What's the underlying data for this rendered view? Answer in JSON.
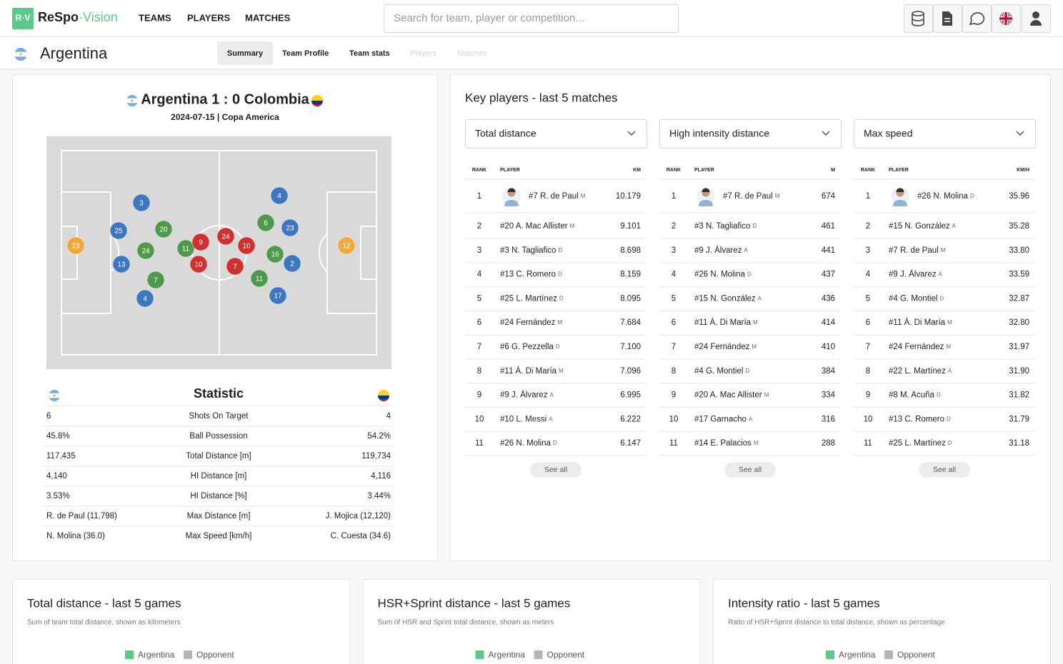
{
  "nav": {
    "logo_icon": "R·V",
    "brand": "ReSpo",
    "brand_suffix": "·Vision",
    "items": [
      "TEAMS",
      "PLAYERS",
      "MATCHES"
    ],
    "search_placeholder": "Search for team, player or competition..."
  },
  "header": {
    "team": "Argentina",
    "tabs": [
      "Summary",
      "Team Profile",
      "Team stats",
      "Players",
      "Matches"
    ],
    "active_tab": 0,
    "disabled_tabs": [
      3,
      4
    ]
  },
  "match": {
    "title": "Argentina 1 : 0 Colombia",
    "subtitle": "2024-07-15 | Copa America",
    "players": [
      {
        "number": "3",
        "color": "#3f76c0"
      },
      {
        "number": "25",
        "color": "#3f76c0"
      },
      {
        "number": "13",
        "color": "#3f76c0"
      },
      {
        "number": "4",
        "color": "#3f76c0"
      },
      {
        "number": "20",
        "color": "#4e9a4a"
      },
      {
        "number": "24",
        "color": "#4e9a4a"
      },
      {
        "number": "7",
        "color": "#4e9a4a"
      },
      {
        "number": "11",
        "color": "#4e9a4a"
      },
      {
        "number": "9",
        "color": "#d0302f"
      },
      {
        "number": "10",
        "color": "#d0302f"
      },
      {
        "number": "24",
        "color": "#d0302f"
      },
      {
        "number": "10",
        "color": "#d0302f"
      },
      {
        "number": "7",
        "color": "#d0302f"
      },
      {
        "number": "6",
        "color": "#4e9a4a"
      },
      {
        "number": "16",
        "color": "#4e9a4a"
      },
      {
        "number": "11",
        "color": "#4e9a4a"
      },
      {
        "number": "4",
        "color": "#3f76c0"
      },
      {
        "number": "23",
        "color": "#3f76c0"
      },
      {
        "number": "2",
        "color": "#3f76c0"
      },
      {
        "number": "17",
        "color": "#3f76c0"
      },
      {
        "number": "23",
        "color": "#f0a83a"
      },
      {
        "number": "12",
        "color": "#f0a83a"
      }
    ]
  },
  "statistics": {
    "header": "Statistic",
    "rows": [
      [
        "6",
        "Shots On Target",
        "4"
      ],
      [
        "45.8%",
        "Ball Possession",
        "54.2%"
      ],
      [
        "117,435",
        "Total Distance [m]",
        "119,734"
      ],
      [
        "4,140",
        "HI Distance [m]",
        "4,116"
      ],
      [
        "3.53%",
        "HI Distance [%]",
        "3.44%"
      ],
      [
        "R. de Paul (11,798)",
        "Max Distance [m]",
        "J. Mojica (12,120)"
      ],
      [
        "N. Molina (36.0)",
        "Max Speed [km/h]",
        "C. Cuesta (34.6)"
      ]
    ]
  },
  "key_players": {
    "title": "Key players - last 5 matches",
    "rank_header": "RANK",
    "player_header": "PLAYER",
    "see_all": "See all",
    "tables": [
      {
        "metric": "Total distance",
        "unit": "KM",
        "rows": [
          {
            "rank": 1,
            "player": "#7 R. de Paul",
            "position": "M",
            "value": "10.179"
          },
          {
            "rank": 2,
            "player": "#20 A. Mac Allister",
            "position": "M",
            "value": "9.101"
          },
          {
            "rank": 3,
            "player": "#3 N. Tagliafico",
            "position": "D",
            "value": "8.698"
          },
          {
            "rank": 4,
            "player": "#13 C. Romero",
            "position": "D",
            "value": "8.159"
          },
          {
            "rank": 5,
            "player": "#25 L. Martínez",
            "position": "D",
            "value": "8.095"
          },
          {
            "rank": 6,
            "player": "#24 Fernández",
            "position": "M",
            "value": "7.684"
          },
          {
            "rank": 7,
            "player": "#6 G. Pezzella",
            "position": "D",
            "value": "7.100"
          },
          {
            "rank": 8,
            "player": "#11 Á. Di María",
            "position": "M",
            "value": "7.096"
          },
          {
            "rank": 9,
            "player": "#9 J. Álvarez",
            "position": "A",
            "value": "6.995"
          },
          {
            "rank": 10,
            "player": "#10 L. Messi",
            "position": "A",
            "value": "6.222"
          },
          {
            "rank": 11,
            "player": "#26 N. Molina",
            "position": "D",
            "value": "6.147"
          }
        ]
      },
      {
        "metric": "High intensity distance",
        "unit": "M",
        "rows": [
          {
            "rank": 1,
            "player": "#7 R. de Paul",
            "position": "M",
            "value": "674"
          },
          {
            "rank": 2,
            "player": "#3 N. Tagliafico",
            "position": "D",
            "value": "461"
          },
          {
            "rank": 3,
            "player": "#9 J. Álvarez",
            "position": "A",
            "value": "441"
          },
          {
            "rank": 4,
            "player": "#26 N. Molina",
            "position": "D",
            "value": "437"
          },
          {
            "rank": 5,
            "player": "#15 N. González",
            "position": "A",
            "value": "436"
          },
          {
            "rank": 6,
            "player": "#11 Á. Di María",
            "position": "M",
            "value": "414"
          },
          {
            "rank": 7,
            "player": "#24 Fernández",
            "position": "M",
            "value": "410"
          },
          {
            "rank": 8,
            "player": "#4 G. Montiel",
            "position": "D",
            "value": "384"
          },
          {
            "rank": 9,
            "player": "#20 A. Mac Allister",
            "position": "M",
            "value": "334"
          },
          {
            "rank": 10,
            "player": "#17 Garnacho",
            "position": "A",
            "value": "316"
          },
          {
            "rank": 11,
            "player": "#14 E. Palacios",
            "position": "M",
            "value": "288"
          }
        ]
      },
      {
        "metric": "Max speed",
        "unit": "KM/H",
        "rows": [
          {
            "rank": 1,
            "player": "#26 N. Molina",
            "position": "D",
            "value": "35.96"
          },
          {
            "rank": 2,
            "player": "#15 N. González",
            "position": "A",
            "value": "35.28"
          },
          {
            "rank": 3,
            "player": "#7 R. de Paul",
            "position": "M",
            "value": "33.80"
          },
          {
            "rank": 4,
            "player": "#9 J. Álvarez",
            "position": "A",
            "value": "33.59"
          },
          {
            "rank": 5,
            "player": "#4 G. Montiel",
            "position": "D",
            "value": "32.87"
          },
          {
            "rank": 6,
            "player": "#11 Á. Di María",
            "position": "M",
            "value": "32.80"
          },
          {
            "rank": 7,
            "player": "#24 Fernández",
            "position": "M",
            "value": "31.97"
          },
          {
            "rank": 8,
            "player": "#22 L. Martínez",
            "position": "A",
            "value": "31.90"
          },
          {
            "rank": 9,
            "player": "#8 M. Acuña",
            "position": "D",
            "value": "31.82"
          },
          {
            "rank": 10,
            "player": "#13 C. Romero",
            "position": "D",
            "value": "31.79"
          },
          {
            "rank": 11,
            "player": "#25 L. Martínez",
            "position": "D",
            "value": "31.18"
          }
        ]
      }
    ]
  },
  "trend_cards": [
    {
      "title": "Total distance - last 5 games",
      "subtitle": "Sum of team total distance, shown as kilometers"
    },
    {
      "title": "HSR+Sprint distance - last 5 games",
      "subtitle": "Sum of HSR and Sprint total distance, shown as meters"
    },
    {
      "title": "Intensity ratio - last 5 games",
      "subtitle": "Ratio of HSR+Sprint distance to total distance, shown as percentage"
    }
  ],
  "legend": [
    {
      "name": "Argentina",
      "color": "#5cc98a"
    },
    {
      "name": "Opponent",
      "color": "#b5b5b5"
    }
  ]
}
